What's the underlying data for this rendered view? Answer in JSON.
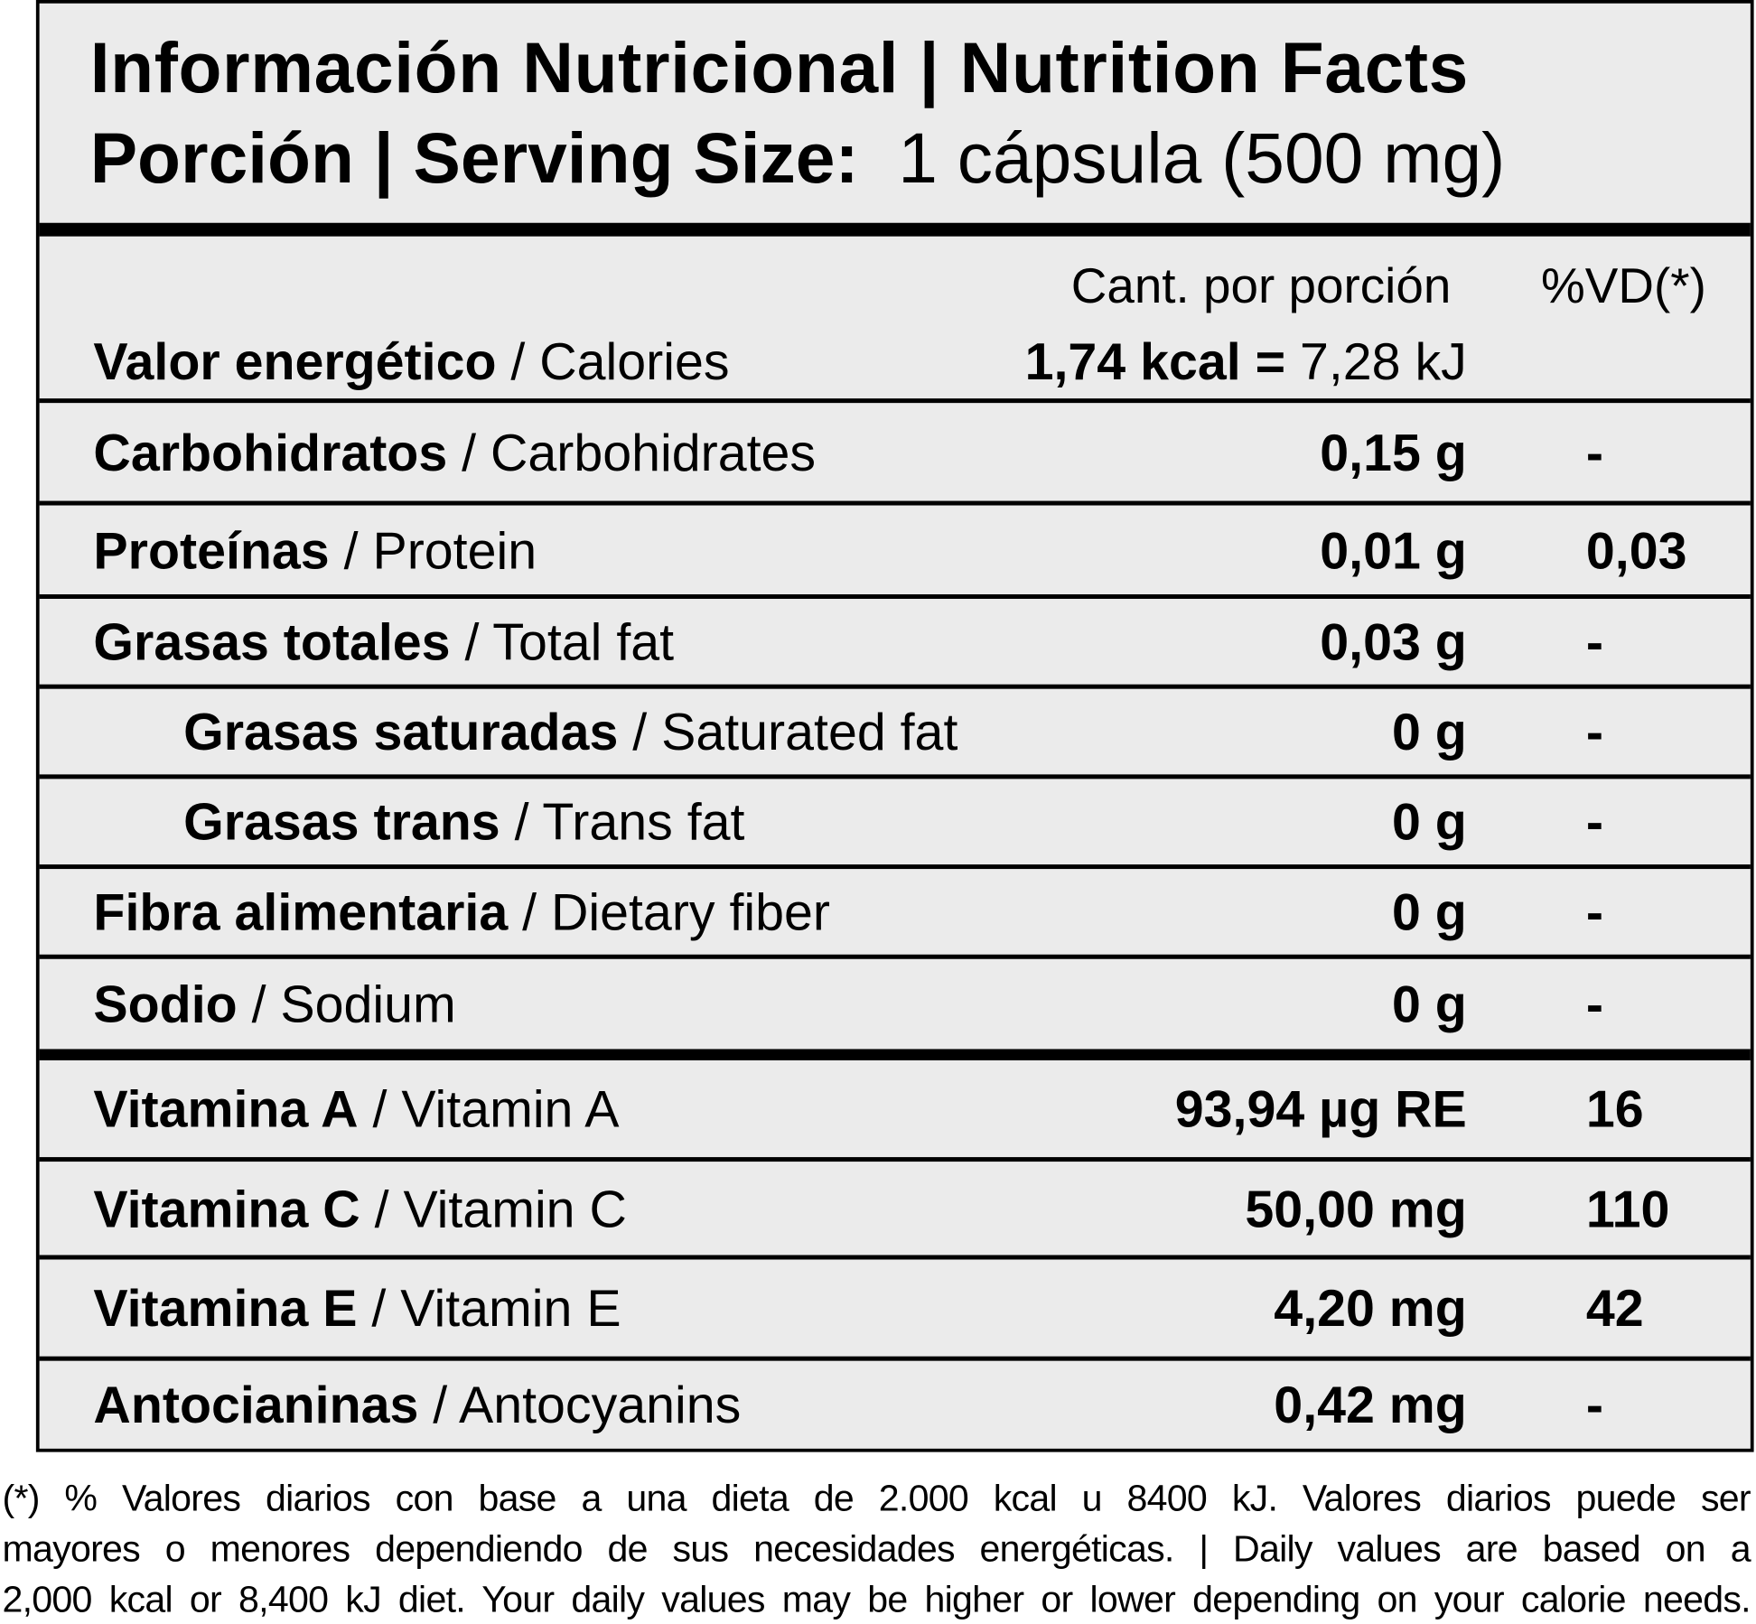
{
  "header": {
    "title": "Información Nutricional | Nutrition Facts",
    "serving_label": "Porción | Serving Size:",
    "serving_value": "1 cápsula (500 mg)"
  },
  "columns": {
    "amount": "Cant. por porción",
    "dv": "%VD(*)"
  },
  "energy": {
    "name_es": "Valor energético",
    "name_en": " / Calories",
    "kcal": "1,74 kcal =",
    "kj": " 7,28 kJ"
  },
  "rows": [
    {
      "es": "Carbohidratos",
      "en": " / Carbohidrates",
      "amount": "0,15 g",
      "dv": "-"
    },
    {
      "es": "Proteínas",
      "en": " / Protein",
      "amount": "0,01 g",
      "dv": "0,03"
    },
    {
      "es": "Grasas totales",
      "en": " / Total fat",
      "amount": "0,03 g",
      "dv": "-"
    },
    {
      "es": "Grasas saturadas",
      "en": " / Saturated fat",
      "amount": "0 g",
      "dv": "-"
    },
    {
      "es": "Grasas trans",
      "en": " / Trans fat",
      "amount": "0 g",
      "dv": "-"
    },
    {
      "es": "Fibra alimentaria",
      "en": " / Dietary fiber",
      "amount": "0 g",
      "dv": "-"
    },
    {
      "es": "Sodio",
      "en": " / Sodium",
      "amount": "0 g",
      "dv": "-"
    },
    {
      "es": "Vitamina A",
      "en": " / Vitamin A",
      "amount": "93,94 µg RE",
      "dv": "16"
    },
    {
      "es": "Vitamina C",
      "en": " / Vitamin C",
      "amount": "50,00 mg",
      "dv": "110"
    },
    {
      "es": "Vitamina E",
      "en": " / Vitamin E",
      "amount": "4,20 mg",
      "dv": "42"
    },
    {
      "es": "Antocianinas",
      "en": " / Antocyanins",
      "amount": "0,42 mg",
      "dv": "-"
    }
  ],
  "footnote": [
    "(*) % Valores diarios con base a una dieta de 2.000 kcal u 8400 kJ. Valores diarios puede ser",
    "mayores o menores dependiendo de sus necesidades energéticas. | Daily values are based on a",
    "2,000 kcal or 8,400 kJ diet. Your daily values may be higher or lower depending on your calorie needs."
  ]
}
